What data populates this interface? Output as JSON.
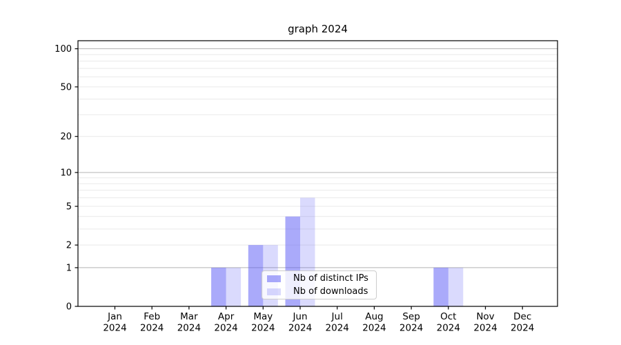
{
  "title": "graph 2024",
  "colors": {
    "background": "#ffffff",
    "axis": "#000000",
    "grid_minor": "#e9e9e9",
    "grid_major": "#b3b3b3",
    "bar_base": "#5555f5",
    "bar_distinct_ips_on_white": "#aaaafa",
    "bar_downloads_on_white": "#dbdbfa",
    "legend_border": "#cccccc"
  },
  "chart_data": {
    "type": "bar",
    "title": "graph 2024",
    "x_categories": [
      "Jan",
      "Feb",
      "Mar",
      "Apr",
      "May",
      "Jun",
      "Jul",
      "Aug",
      "Sep",
      "Oct",
      "Nov",
      "Dec"
    ],
    "x_year": "2024",
    "series": [
      {
        "name": "Nb of distinct IPs",
        "color": "rgba(85,85,245,0.5)",
        "values": [
          0,
          0,
          0,
          1,
          2,
          4,
          0,
          0,
          0,
          1,
          0,
          0
        ]
      },
      {
        "name": "Nb of downloads",
        "color": "rgba(85,85,245,0.22)",
        "values": [
          0,
          0,
          0,
          1,
          2,
          6,
          0,
          0,
          0,
          1,
          0,
          0
        ]
      }
    ],
    "yscale": "log1p",
    "ylim": [
      0,
      116
    ],
    "y_tick_values": [
      0,
      1,
      2,
      5,
      10,
      20,
      50,
      100
    ],
    "y_tick_labels": [
      "0",
      "1",
      "2",
      "5",
      "10",
      "20",
      "50",
      "100"
    ],
    "y_major_gridlines": [
      1,
      10,
      100
    ],
    "y_minor_gridlines": [
      2,
      3,
      4,
      5,
      6,
      7,
      8,
      9,
      20,
      30,
      40,
      50,
      60,
      70,
      80,
      90
    ],
    "grid": true,
    "legend_position": "lower center"
  }
}
